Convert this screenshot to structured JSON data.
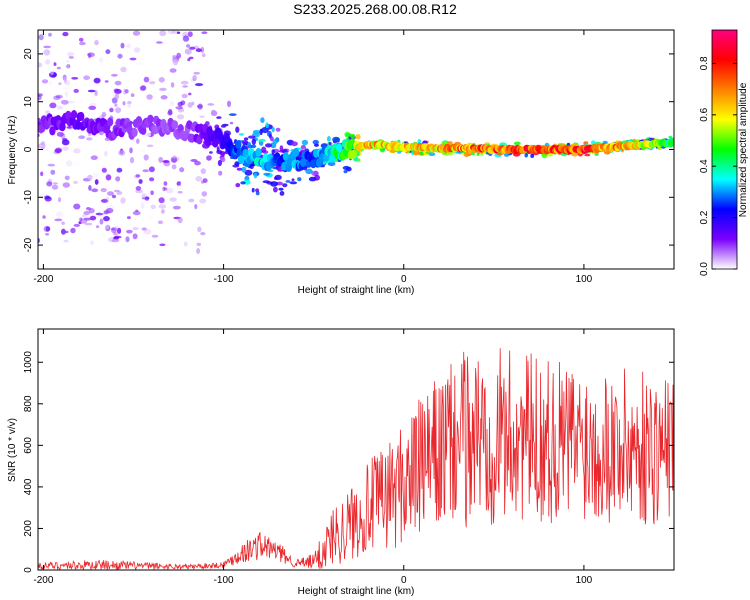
{
  "title": "S233.2025.268.00.08.R12",
  "colors": {
    "line": "#e8262b",
    "axis": "#000000",
    "cmap": [
      "#ffffff",
      "#7a00ff",
      "#0000ff",
      "#00ffff",
      "#00ff00",
      "#ffff00",
      "#ff8000",
      "#ff0000",
      "#ff0080"
    ]
  },
  "chart_data": [
    {
      "type": "heatmap",
      "name": "spectrogram",
      "title": "",
      "xlabel": "Height of straight line (km)",
      "ylabel": "Frequency (Hz)",
      "xlim": [
        -203,
        150
      ],
      "ylim": [
        -25,
        25
      ],
      "xticks": [
        -200,
        -100,
        0,
        100
      ],
      "xtick_labels": [
        "-200",
        "-100",
        "0",
        "100"
      ],
      "yticks": [
        -20,
        -10,
        0,
        10,
        20
      ],
      "ytick_labels": [
        "-20",
        "-10",
        "0",
        "10",
        "20"
      ],
      "grid": false,
      "colorbar": {
        "label": "Normalized spectral amplitude",
        "range": [
          0,
          0.93
        ],
        "ticks": [
          0.0,
          0.2,
          0.4,
          0.6,
          0.8
        ],
        "tick_labels": [
          "0.0",
          "0.2",
          "0.4",
          "0.6",
          "0.8"
        ]
      },
      "ridge": {
        "x": [
          -203,
          -180,
          -160,
          -140,
          -120,
          -100,
          -90,
          -80,
          -70,
          -60,
          -50,
          -40,
          -30,
          -20,
          0,
          50,
          100,
          130,
          150
        ],
        "freq": [
          5,
          6,
          4,
          5,
          4,
          2,
          -1,
          -2,
          -3,
          -2,
          -2,
          -1,
          0,
          1,
          0.5,
          0,
          0,
          1,
          1.5
        ],
        "amplitude": [
          0.12,
          0.15,
          0.12,
          0.1,
          0.1,
          0.2,
          0.35,
          0.4,
          0.3,
          0.35,
          0.3,
          0.45,
          0.55,
          0.75,
          0.7,
          0.85,
          0.9,
          0.7,
          0.5
        ]
      }
    },
    {
      "type": "line",
      "name": "snr",
      "title": "",
      "xlabel": "Height of straight line (km)",
      "ylabel": "SNR (10 * v/v)",
      "xlim": [
        -203,
        150
      ],
      "ylim": [
        0,
        1160
      ],
      "xticks": [
        -200,
        -100,
        0,
        100
      ],
      "xtick_labels": [
        "-200",
        "-100",
        "0",
        "100"
      ],
      "yticks": [
        0,
        200,
        400,
        600,
        800,
        1000
      ],
      "ytick_labels": [
        "0",
        "200",
        "400",
        "600",
        "800",
        "1000"
      ],
      "grid": false,
      "series": [
        {
          "name": "SNR",
          "envelope_x": [
            -203,
            -170,
            -120,
            -100,
            -90,
            -80,
            -70,
            -60,
            -50,
            -45,
            -40,
            -30,
            -20,
            -10,
            0,
            10,
            20,
            30,
            40,
            60,
            80,
            100,
            120,
            140,
            150
          ],
          "envelope_mean": [
            20,
            25,
            15,
            25,
            80,
            120,
            90,
            30,
            40,
            90,
            160,
            220,
            300,
            350,
            420,
            500,
            560,
            620,
            650,
            650,
            620,
            620,
            600,
            580,
            600
          ],
          "envelope_amp": [
            15,
            25,
            12,
            15,
            50,
            70,
            50,
            20,
            40,
            100,
            140,
            180,
            220,
            260,
            300,
            340,
            380,
            420,
            450,
            420,
            400,
            380,
            380,
            380,
            330
          ]
        }
      ]
    }
  ]
}
